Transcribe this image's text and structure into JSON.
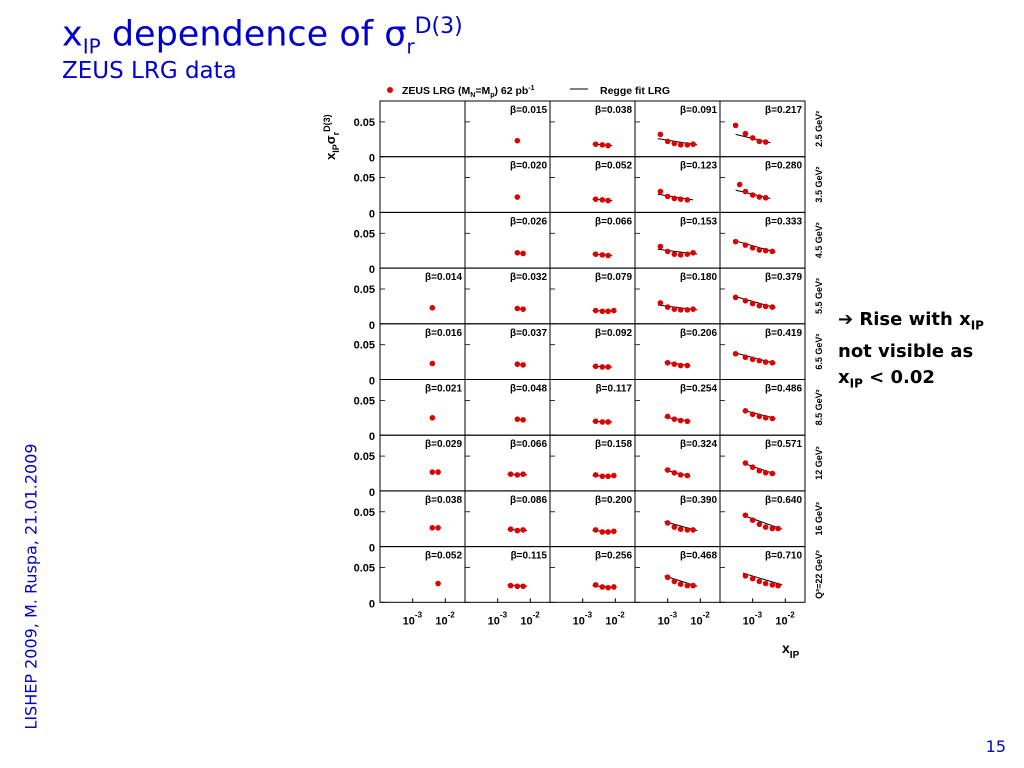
{
  "slide": {
    "title_main": "x",
    "title_sub": "IP",
    "title_mid": " dependence of σ",
    "title_sub2": "r",
    "title_sup": "D(3)",
    "subtitle": "ZEUS LRG data",
    "side_text": "LISHEP  2009, M. Ruspa, 21.01.2009",
    "page_number": "15",
    "note": {
      "arrow": "➔",
      "line1": "Rise with x",
      "line1_sub": "IP",
      "line2": "not visible as",
      "line3_x": "x",
      "line3_sub": "IP",
      "line3_rest": " < 0.02"
    },
    "colors": {
      "title": "#0000cc",
      "marker": "#dd0000",
      "fit": "#000000",
      "frame": "#000000"
    }
  },
  "chart_data": {
    "type": "scatter",
    "layout": "grid",
    "legend": {
      "data_label": "ZEUS LRG (M",
      "data_sub1": "N",
      "data_mid": "=M",
      "data_sub2": "p",
      "data_tail": ")  62 pb",
      "data_sup": "-1",
      "fit_label": "Regge fit LRG",
      "placement": "top"
    },
    "y_label": "x_IP σ_r^D(3)",
    "x_label": "x_IP",
    "x_scale": "log",
    "xlim": [
      0.0001,
      0.04
    ],
    "ylim": [
      0,
      0.08
    ],
    "y_ticks": [
      "0.05",
      "0"
    ],
    "x_tick_labels": [
      "10^-3",
      "10^-2"
    ],
    "q2_labels": [
      "2.5 GeV²",
      "3.5 GeV²",
      "4.5 GeV²",
      "5.5 GeV²",
      "6.5 GeV²",
      "8.5 GeV²",
      "12 GeV²",
      "16 GeV²",
      "Q²=22 GeV²"
    ],
    "beta_labels": [
      [
        "",
        "β=0.015",
        "β=0.038",
        "β=0.091",
        "β=0.217"
      ],
      [
        "",
        "β=0.020",
        "β=0.052",
        "β=0.123",
        "β=0.280"
      ],
      [
        "",
        "β=0.026",
        "β=0.066",
        "β=0.153",
        "β=0.333"
      ],
      [
        "β=0.014",
        "β=0.032",
        "β=0.079",
        "β=0.180",
        "β=0.379"
      ],
      [
        "β=0.016",
        "β=0.037",
        "β=0.092",
        "β=0.206",
        "β=0.419"
      ],
      [
        "β=0.021",
        "β=0.048",
        "β=0.117",
        "β=0.254",
        "β=0.486"
      ],
      [
        "β=0.029",
        "β=0.066",
        "β=0.158",
        "β=0.324",
        "β=0.571"
      ],
      [
        "β=0.038",
        "β=0.086",
        "β=0.200",
        "β=0.390",
        "β=0.640"
      ],
      [
        "β=0.052",
        "β=0.115",
        "β=0.256",
        "β=0.468",
        "β=0.710"
      ]
    ],
    "cells": [
      [
        {
          "x": [],
          "y": []
        },
        {
          "x": [
            0.004
          ],
          "y": [
            0.023
          ]
        },
        {
          "x": [
            0.0025,
            0.004,
            0.006
          ],
          "y": [
            0.018,
            0.017,
            0.016
          ]
        },
        {
          "x": [
            0.0006,
            0.001,
            0.0016,
            0.0025,
            0.004,
            0.006
          ],
          "y": [
            0.032,
            0.022,
            0.019,
            0.017,
            0.017,
            0.018
          ]
        },
        {
          "x": [
            0.0003,
            0.0006,
            0.001,
            0.0016,
            0.0025
          ],
          "y": [
            0.045,
            0.033,
            0.027,
            0.022,
            0.021
          ]
        }
      ],
      [
        {
          "x": [],
          "y": []
        },
        {
          "x": [
            0.004
          ],
          "y": [
            0.022
          ]
        },
        {
          "x": [
            0.0025,
            0.004,
            0.006
          ],
          "y": [
            0.019,
            0.018,
            0.017
          ]
        },
        {
          "x": [
            0.0006,
            0.001,
            0.0016,
            0.0025,
            0.004
          ],
          "y": [
            0.03,
            0.023,
            0.02,
            0.019,
            0.018
          ]
        },
        {
          "x": [
            0.0004,
            0.0006,
            0.001,
            0.0016,
            0.0025
          ],
          "y": [
            0.04,
            0.03,
            0.025,
            0.022,
            0.021
          ]
        }
      ],
      [
        {
          "x": [],
          "y": []
        },
        {
          "x": [
            0.004,
            0.006
          ],
          "y": [
            0.022,
            0.021
          ]
        },
        {
          "x": [
            0.0025,
            0.004,
            0.006
          ],
          "y": [
            0.02,
            0.019,
            0.018
          ]
        },
        {
          "x": [
            0.0006,
            0.001,
            0.0016,
            0.0025,
            0.004,
            0.006
          ],
          "y": [
            0.031,
            0.024,
            0.02,
            0.019,
            0.02,
            0.022
          ]
        },
        {
          "x": [
            0.0003,
            0.0006,
            0.001,
            0.0016,
            0.0025,
            0.004
          ],
          "y": [
            0.038,
            0.033,
            0.029,
            0.026,
            0.025,
            0.024
          ]
        }
      ],
      [
        {
          "x": [
            0.004
          ],
          "y": [
            0.023
          ]
        },
        {
          "x": [
            0.004,
            0.006
          ],
          "y": [
            0.022,
            0.021
          ]
        },
        {
          "x": [
            0.0025,
            0.004,
            0.006,
            0.009
          ],
          "y": [
            0.019,
            0.018,
            0.018,
            0.019
          ]
        },
        {
          "x": [
            0.0006,
            0.001,
            0.0016,
            0.0025,
            0.004,
            0.006
          ],
          "y": [
            0.03,
            0.024,
            0.021,
            0.02,
            0.02,
            0.021
          ]
        },
        {
          "x": [
            0.0003,
            0.0006,
            0.001,
            0.0016,
            0.0025,
            0.004
          ],
          "y": [
            0.038,
            0.033,
            0.029,
            0.026,
            0.025,
            0.024
          ]
        }
      ],
      [
        {
          "x": [
            0.004
          ],
          "y": [
            0.023
          ]
        },
        {
          "x": [
            0.004,
            0.006
          ],
          "y": [
            0.022,
            0.021
          ]
        },
        {
          "x": [
            0.0025,
            0.004,
            0.006
          ],
          "y": [
            0.019,
            0.018,
            0.018
          ]
        },
        {
          "x": [
            0.001,
            0.0016,
            0.0025,
            0.004
          ],
          "y": [
            0.024,
            0.022,
            0.02,
            0.02
          ]
        },
        {
          "x": [
            0.0003,
            0.0006,
            0.001,
            0.0016,
            0.0025,
            0.004
          ],
          "y": [
            0.037,
            0.032,
            0.029,
            0.027,
            0.025,
            0.024
          ]
        }
      ],
      [
        {
          "x": [
            0.004
          ],
          "y": [
            0.025
          ]
        },
        {
          "x": [
            0.004,
            0.006
          ],
          "y": [
            0.023,
            0.022
          ]
        },
        {
          "x": [
            0.0025,
            0.004,
            0.006
          ],
          "y": [
            0.02,
            0.019,
            0.019
          ]
        },
        {
          "x": [
            0.001,
            0.0016,
            0.0025,
            0.004
          ],
          "y": [
            0.027,
            0.023,
            0.021,
            0.02
          ]
        },
        {
          "x": [
            0.0006,
            0.001,
            0.0016,
            0.0025,
            0.004
          ],
          "y": [
            0.035,
            0.03,
            0.027,
            0.025,
            0.024
          ]
        }
      ],
      [
        {
          "x": [
            0.004,
            0.006
          ],
          "y": [
            0.027,
            0.027
          ]
        },
        {
          "x": [
            0.0025,
            0.004,
            0.006
          ],
          "y": [
            0.024,
            0.023,
            0.024
          ]
        },
        {
          "x": [
            0.0025,
            0.004,
            0.006,
            0.009
          ],
          "y": [
            0.023,
            0.021,
            0.021,
            0.022
          ]
        },
        {
          "x": [
            0.001,
            0.0016,
            0.0025,
            0.004
          ],
          "y": [
            0.03,
            0.026,
            0.023,
            0.022
          ]
        },
        {
          "x": [
            0.0006,
            0.001,
            0.0016,
            0.0025,
            0.004
          ],
          "y": [
            0.04,
            0.034,
            0.029,
            0.026,
            0.025
          ]
        }
      ],
      [
        {
          "x": [
            0.004,
            0.006
          ],
          "y": [
            0.027,
            0.027
          ]
        },
        {
          "x": [
            0.0025,
            0.004,
            0.006
          ],
          "y": [
            0.025,
            0.023,
            0.024
          ]
        },
        {
          "x": [
            0.0025,
            0.004,
            0.006,
            0.009
          ],
          "y": [
            0.024,
            0.021,
            0.021,
            0.022
          ]
        },
        {
          "x": [
            0.001,
            0.0016,
            0.0025,
            0.004,
            0.006
          ],
          "y": [
            0.034,
            0.028,
            0.025,
            0.024,
            0.024
          ]
        },
        {
          "x": [
            0.0006,
            0.001,
            0.0016,
            0.0025,
            0.004,
            0.006
          ],
          "y": [
            0.045,
            0.038,
            0.032,
            0.028,
            0.026,
            0.026
          ]
        }
      ],
      [
        {
          "x": [
            0.006
          ],
          "y": [
            0.027
          ]
        },
        {
          "x": [
            0.0025,
            0.004,
            0.006
          ],
          "y": [
            0.024,
            0.023,
            0.023
          ]
        },
        {
          "x": [
            0.0025,
            0.004,
            0.006,
            0.009
          ],
          "y": [
            0.025,
            0.022,
            0.021,
            0.022
          ]
        },
        {
          "x": [
            0.001,
            0.0016,
            0.0025,
            0.004,
            0.006
          ],
          "y": [
            0.036,
            0.03,
            0.026,
            0.024,
            0.024
          ]
        },
        {
          "x": [
            0.0006,
            0.001,
            0.0016,
            0.0025,
            0.004,
            0.006
          ],
          "y": [
            0.038,
            0.034,
            0.03,
            0.027,
            0.025,
            0.024
          ]
        }
      ]
    ],
    "fits": [
      [
        null,
        null,
        {
          "x": [
            0.002,
            0.008
          ],
          "y": [
            0.018,
            0.016
          ]
        },
        {
          "x": [
            0.0005,
            0.008
          ],
          "y": [
            0.026,
            0.017
          ]
        },
        {
          "x": [
            0.0003,
            0.0035
          ],
          "y": [
            0.032,
            0.02
          ]
        }
      ],
      [
        null,
        null,
        {
          "x": [
            0.002,
            0.008
          ],
          "y": [
            0.019,
            0.017
          ]
        },
        {
          "x": [
            0.0005,
            0.006
          ],
          "y": [
            0.026,
            0.018
          ]
        },
        {
          "x": [
            0.0003,
            0.0035
          ],
          "y": [
            0.032,
            0.02
          ]
        }
      ],
      [
        null,
        {
          "x": [
            0.0035,
            0.007
          ],
          "y": [
            0.022,
            0.021
          ]
        },
        {
          "x": [
            0.002,
            0.008
          ],
          "y": [
            0.02,
            0.018
          ]
        },
        {
          "x": [
            0.0005,
            0.008
          ],
          "y": [
            0.027,
            0.02
          ]
        },
        {
          "x": [
            0.0003,
            0.005
          ],
          "y": [
            0.039,
            0.023
          ]
        }
      ],
      [
        null,
        {
          "x": [
            0.0035,
            0.007
          ],
          "y": [
            0.022,
            0.021
          ]
        },
        {
          "x": [
            0.002,
            0.01
          ],
          "y": [
            0.019,
            0.018
          ]
        },
        {
          "x": [
            0.0005,
            0.008
          ],
          "y": [
            0.027,
            0.02
          ]
        },
        {
          "x": [
            0.0003,
            0.005
          ],
          "y": [
            0.039,
            0.023
          ]
        }
      ],
      [
        null,
        {
          "x": [
            0.0035,
            0.007
          ],
          "y": [
            0.022,
            0.021
          ]
        },
        {
          "x": [
            0.002,
            0.008
          ],
          "y": [
            0.019,
            0.018
          ]
        },
        {
          "x": [
            0.0008,
            0.005
          ],
          "y": [
            0.025,
            0.02
          ]
        },
        {
          "x": [
            0.0003,
            0.005
          ],
          "y": [
            0.038,
            0.023
          ]
        }
      ],
      [
        null,
        {
          "x": [
            0.0035,
            0.007
          ],
          "y": [
            0.023,
            0.022
          ]
        },
        {
          "x": [
            0.002,
            0.008
          ],
          "y": [
            0.02,
            0.019
          ]
        },
        {
          "x": [
            0.0008,
            0.005
          ],
          "y": [
            0.026,
            0.02
          ]
        },
        {
          "x": [
            0.0005,
            0.005
          ],
          "y": [
            0.036,
            0.024
          ]
        }
      ],
      [
        null,
        {
          "x": [
            0.002,
            0.008
          ],
          "y": [
            0.024,
            0.023
          ]
        },
        {
          "x": [
            0.002,
            0.01
          ],
          "y": [
            0.022,
            0.021
          ]
        },
        {
          "x": [
            0.0008,
            0.005
          ],
          "y": [
            0.03,
            0.021
          ]
        },
        {
          "x": [
            0.0005,
            0.005
          ],
          "y": [
            0.04,
            0.024
          ]
        }
      ],
      [
        null,
        {
          "x": [
            0.002,
            0.008
          ],
          "y": [
            0.025,
            0.023
          ]
        },
        {
          "x": [
            0.002,
            0.01
          ],
          "y": [
            0.023,
            0.021
          ]
        },
        {
          "x": [
            0.0008,
            0.008
          ],
          "y": [
            0.036,
            0.023
          ]
        },
        {
          "x": [
            0.0005,
            0.008
          ],
          "y": [
            0.045,
            0.025
          ]
        }
      ],
      [
        null,
        {
          "x": [
            0.002,
            0.008
          ],
          "y": [
            0.025,
            0.023
          ]
        },
        {
          "x": [
            0.002,
            0.01
          ],
          "y": [
            0.024,
            0.021
          ]
        },
        {
          "x": [
            0.0008,
            0.008
          ],
          "y": [
            0.038,
            0.023
          ]
        },
        {
          "x": [
            0.0005,
            0.008
          ],
          "y": [
            0.042,
            0.025
          ]
        }
      ]
    ]
  }
}
